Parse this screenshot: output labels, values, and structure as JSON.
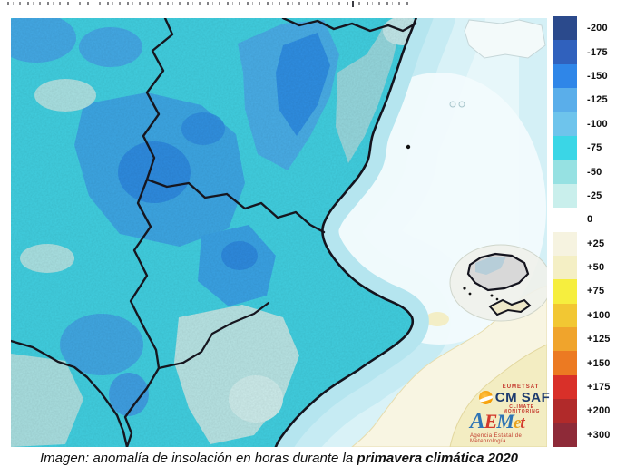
{
  "legend": {
    "entries": [
      {
        "label": "-200",
        "color": "#2b4a8c"
      },
      {
        "label": "-175",
        "color": "#3061bd"
      },
      {
        "label": "-150",
        "color": "#2f86e8"
      },
      {
        "label": "-125",
        "color": "#5aaeea"
      },
      {
        "label": "-100",
        "color": "#6ec4ec"
      },
      {
        "label": "-75",
        "color": "#3ad6e6"
      },
      {
        "label": "-50",
        "color": "#96e1e2"
      },
      {
        "label": "-25",
        "color": "#c9efec"
      },
      {
        "label": "0",
        "color": "#ffffff"
      },
      {
        "label": "+25",
        "color": "#f6f3e0"
      },
      {
        "label": "+50",
        "color": "#f4efc4"
      },
      {
        "label": "+75",
        "color": "#f6ee3e"
      },
      {
        "label": "+100",
        "color": "#f2c733"
      },
      {
        "label": "+125",
        "color": "#f0a42c"
      },
      {
        "label": "+150",
        "color": "#ec7a22"
      },
      {
        "label": "+175",
        "color": "#d93029"
      },
      {
        "label": "+200",
        "color": "#b12a2a"
      },
      {
        "label": "+300",
        "color": "#8e2a38"
      }
    ]
  },
  "caption": {
    "text": "Imagen: anomalía de insolación en horas durante la ",
    "bold_text": "primavera climática 2020"
  },
  "logos": {
    "cmsaf": {
      "top": "EUMETSAT",
      "name": "CM SAF",
      "subtitle": "CLIMATE MONITORING"
    },
    "aemet": {
      "l0": "A",
      "l1": "E",
      "l2": "M",
      "l3": "e",
      "l4": "t",
      "subtitle": "Agencia Estatal de Meteorología"
    }
  },
  "map_colors": {
    "land_base": "#41cfe0",
    "land_blue_100": "#3da6e3",
    "land_blue_125": "#2e8bdf",
    "land_pale_50": "#a9e1e2",
    "sea_near_coast": "#b5e5ef",
    "sea_light": "#f3fbfd",
    "sea_positive_25": "#f8f5e2",
    "sea_positive_50": "#f3edc2",
    "island_gray": "#d8d8d8",
    "border_black": "#16161f"
  }
}
